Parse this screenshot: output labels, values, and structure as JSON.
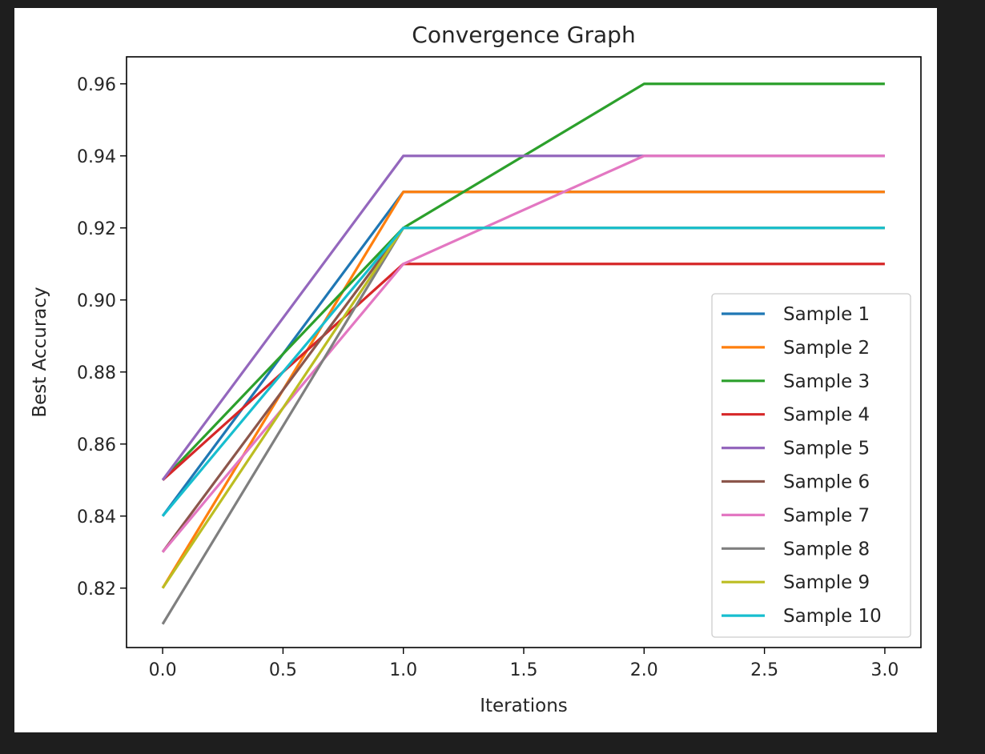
{
  "chart_data": {
    "type": "line",
    "title": "Convergence Graph",
    "xlabel": "Iterations",
    "ylabel": "Best Accuracy",
    "xlim": [
      -0.15,
      3.15
    ],
    "ylim": [
      0.8035,
      0.9675
    ],
    "x_ticks": [
      {
        "value": 0.0,
        "label": "0.0"
      },
      {
        "value": 0.5,
        "label": "0.5"
      },
      {
        "value": 1.0,
        "label": "1.0"
      },
      {
        "value": 1.5,
        "label": "1.5"
      },
      {
        "value": 2.0,
        "label": "2.0"
      },
      {
        "value": 2.5,
        "label": "2.5"
      },
      {
        "value": 3.0,
        "label": "3.0"
      }
    ],
    "y_ticks": [
      {
        "value": 0.82,
        "label": "0.82"
      },
      {
        "value": 0.84,
        "label": "0.84"
      },
      {
        "value": 0.86,
        "label": "0.86"
      },
      {
        "value": 0.88,
        "label": "0.88"
      },
      {
        "value": 0.9,
        "label": "0.90"
      },
      {
        "value": 0.92,
        "label": "0.92"
      },
      {
        "value": 0.94,
        "label": "0.94"
      },
      {
        "value": 0.96,
        "label": "0.96"
      }
    ],
    "grid": false,
    "legend_position": "lower-right",
    "x": [
      0,
      1,
      2,
      3
    ],
    "series": [
      {
        "name": "Sample 1",
        "color": "#1f77b4",
        "values": [
          0.84,
          0.93,
          0.93,
          0.93
        ]
      },
      {
        "name": "Sample 2",
        "color": "#ff7f0e",
        "values": [
          0.82,
          0.93,
          0.93,
          0.93
        ]
      },
      {
        "name": "Sample 3",
        "color": "#2ca02c",
        "values": [
          0.85,
          0.92,
          0.96,
          0.96
        ]
      },
      {
        "name": "Sample 4",
        "color": "#d62728",
        "values": [
          0.85,
          0.91,
          0.91,
          0.91
        ]
      },
      {
        "name": "Sample 5",
        "color": "#9467bd",
        "values": [
          0.85,
          0.94,
          0.94,
          0.94
        ]
      },
      {
        "name": "Sample 6",
        "color": "#8c564b",
        "values": [
          0.83,
          0.92,
          0.92,
          0.92
        ]
      },
      {
        "name": "Sample 7",
        "color": "#e377c2",
        "values": [
          0.83,
          0.91,
          0.94,
          0.94
        ]
      },
      {
        "name": "Sample 8",
        "color": "#7f7f7f",
        "values": [
          0.81,
          0.92,
          0.92,
          0.92
        ]
      },
      {
        "name": "Sample 9",
        "color": "#bcbd22",
        "values": [
          0.82,
          0.92,
          0.92,
          0.92
        ]
      },
      {
        "name": "Sample 10",
        "color": "#17becf",
        "values": [
          0.84,
          0.92,
          0.92,
          0.92
        ]
      }
    ]
  }
}
